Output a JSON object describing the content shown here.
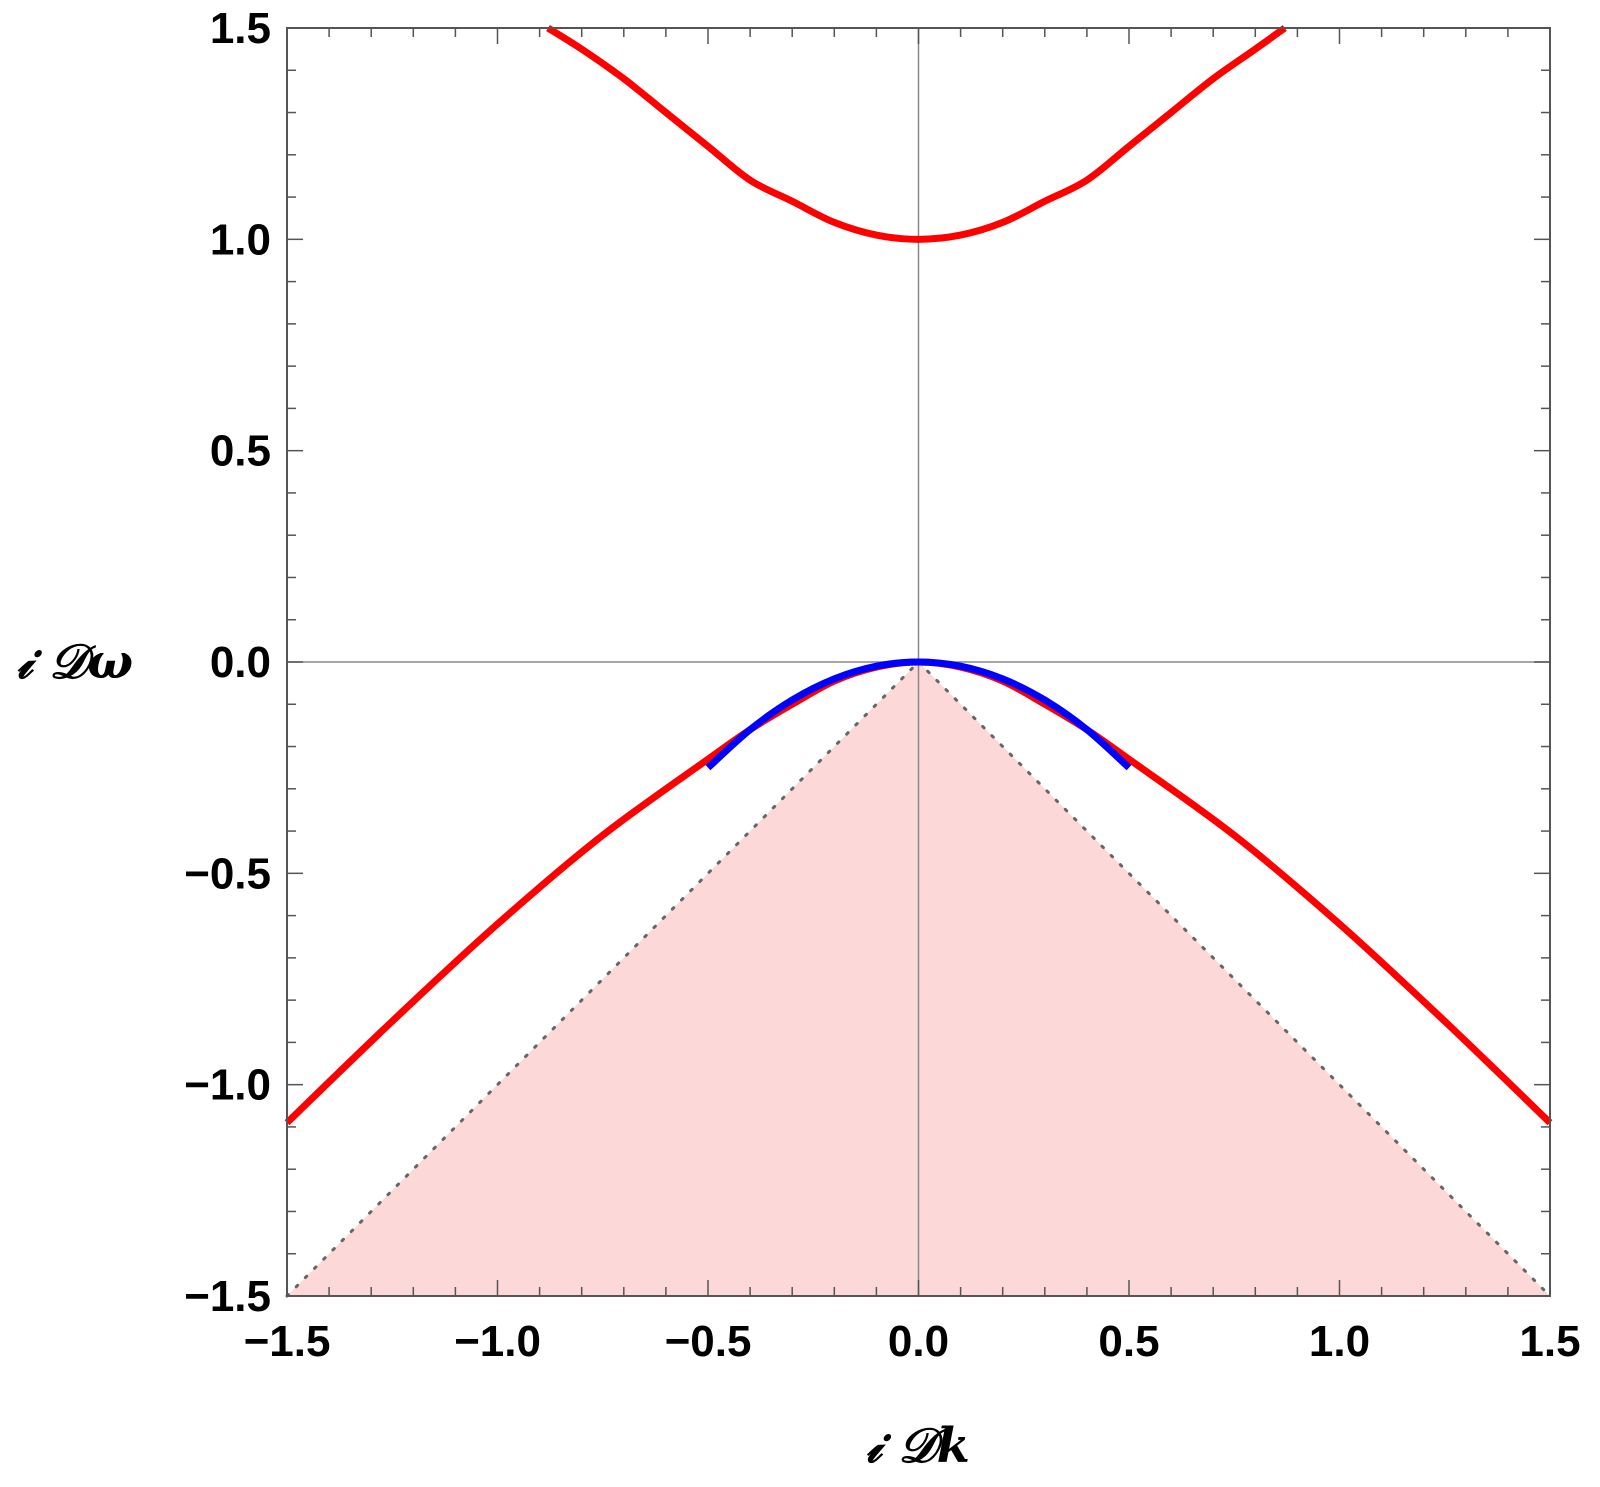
{
  "chart_data": {
    "type": "line",
    "title": "",
    "xlabel": "𝒾 𝒟k",
    "ylabel": "𝒾 𝒟ω",
    "xlim": [
      -1.5,
      1.5
    ],
    "ylim": [
      -1.5,
      1.5
    ],
    "xticks": [
      -1.5,
      -1.0,
      -0.5,
      0.0,
      0.5,
      1.0,
      1.5
    ],
    "yticks": [
      -1.5,
      -1.0,
      -0.5,
      0.0,
      0.5,
      1.0,
      1.5
    ],
    "xtick_labels": [
      "−1.5",
      "−1.0",
      "−0.5",
      "0.0",
      "0.5",
      "1.0",
      "1.5"
    ],
    "ytick_labels": [
      "−1.5",
      "−1.0",
      "−0.5",
      "0.0",
      "0.5",
      "1.0",
      "1.5"
    ],
    "grid": false,
    "frame": true,
    "colors": {
      "upper_branch": "#ff0000",
      "lower_branch": "#ff0000",
      "approximation": "#0000ff",
      "shaded_region": "#fdd8d8",
      "dotted_boundary": "#666666",
      "axes": "#888888",
      "frame": "#555555"
    },
    "series": [
      {
        "x": [
          -0.88,
          -0.8,
          -0.7,
          -0.6,
          -0.5,
          -0.4,
          -0.3,
          -0.2,
          -0.1,
          0.0,
          0.1,
          0.2,
          0.3,
          0.4,
          0.5,
          0.6,
          0.7,
          0.8,
          0.87
        ],
        "y": [
          1.5,
          1.45,
          1.38,
          1.3,
          1.22,
          1.14,
          1.09,
          1.04,
          1.01,
          1.0,
          1.01,
          1.04,
          1.09,
          1.14,
          1.22,
          1.3,
          1.38,
          1.45,
          1.5
        ]
      },
      {
        "x": [
          -1.5,
          -1.25,
          -1.0,
          -0.75,
          -0.5,
          -0.4,
          -0.3,
          -0.2,
          -0.1,
          0.0,
          0.1,
          0.2,
          0.3,
          0.4,
          0.5,
          0.75,
          1.0,
          1.25,
          1.5
        ],
        "y": [
          -1.09,
          -0.85,
          -0.62,
          -0.41,
          -0.23,
          -0.16,
          -0.1,
          -0.045,
          -0.012,
          0.0,
          -0.012,
          -0.045,
          -0.1,
          -0.16,
          -0.23,
          -0.41,
          -0.62,
          -0.85,
          -1.09
        ]
      },
      {
        "x": [
          -0.5,
          -0.4,
          -0.3,
          -0.2,
          -0.1,
          0.0,
          0.1,
          0.2,
          0.3,
          0.4,
          0.5
        ],
        "y": [
          -0.25,
          -0.16,
          -0.09,
          -0.04,
          -0.01,
          0.0,
          -0.01,
          -0.04,
          -0.09,
          -0.16,
          -0.25
        ]
      }
    ],
    "shaded_region": {
      "description_points_x": [
        -1.5,
        0.0,
        1.5
      ],
      "description_points_y": [
        -1.5,
        0.0,
        -1.5
      ]
    }
  }
}
